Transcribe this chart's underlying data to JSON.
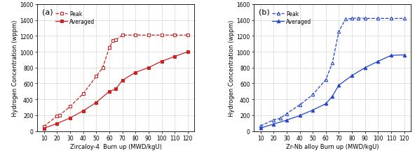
{
  "panel_a": {
    "xlabel": "Zircaloy-4  Burn up (MWD/kgU)",
    "ylabel": "Hydrogen Concentration (wppm)",
    "label": "(a)",
    "color": "#cc2222",
    "ylim": [
      0,
      1600
    ],
    "xlim": [
      5,
      125
    ],
    "xticks": [
      10,
      20,
      30,
      40,
      50,
      60,
      70,
      80,
      90,
      100,
      110,
      120
    ],
    "yticks": [
      0,
      200,
      400,
      600,
      800,
      1000,
      1200,
      1400,
      1600
    ],
    "peak_x": [
      10,
      20,
      22,
      30,
      40,
      50,
      55,
      60,
      63,
      65,
      70,
      80,
      90,
      100,
      110,
      120
    ],
    "peak_y": [
      60,
      190,
      200,
      310,
      470,
      690,
      800,
      1050,
      1140,
      1150,
      1210,
      1210,
      1210,
      1210,
      1210,
      1210
    ],
    "avg_x": [
      10,
      20,
      30,
      40,
      50,
      60,
      65,
      70,
      80,
      90,
      100,
      110,
      120
    ],
    "avg_y": [
      35,
      95,
      165,
      255,
      360,
      500,
      530,
      640,
      740,
      800,
      880,
      940,
      1000
    ]
  },
  "panel_b": {
    "xlabel": "Zr-Nb alloy Burn up (MWD/kgU)",
    "ylabel": "Hydrogen Concentration (wppm)",
    "label": "(b)",
    "color": "#2244cc",
    "ylim": [
      0,
      1600
    ],
    "xlim": [
      5,
      125
    ],
    "xticks": [
      10,
      20,
      30,
      40,
      50,
      60,
      70,
      80,
      90,
      100,
      110,
      120
    ],
    "yticks": [
      0,
      200,
      400,
      600,
      800,
      1000,
      1200,
      1400,
      1600
    ],
    "peak_x": [
      10,
      20,
      25,
      30,
      40,
      50,
      60,
      65,
      70,
      75,
      80,
      85,
      90,
      100,
      110,
      120
    ],
    "peak_y": [
      65,
      140,
      160,
      220,
      330,
      460,
      650,
      860,
      1260,
      1410,
      1420,
      1425,
      1420,
      1420,
      1420,
      1420
    ],
    "avg_x": [
      10,
      20,
      30,
      40,
      50,
      60,
      65,
      70,
      80,
      90,
      100,
      110,
      120
    ],
    "avg_y": [
      38,
      88,
      138,
      195,
      265,
      345,
      440,
      580,
      700,
      800,
      880,
      955,
      960
    ]
  }
}
